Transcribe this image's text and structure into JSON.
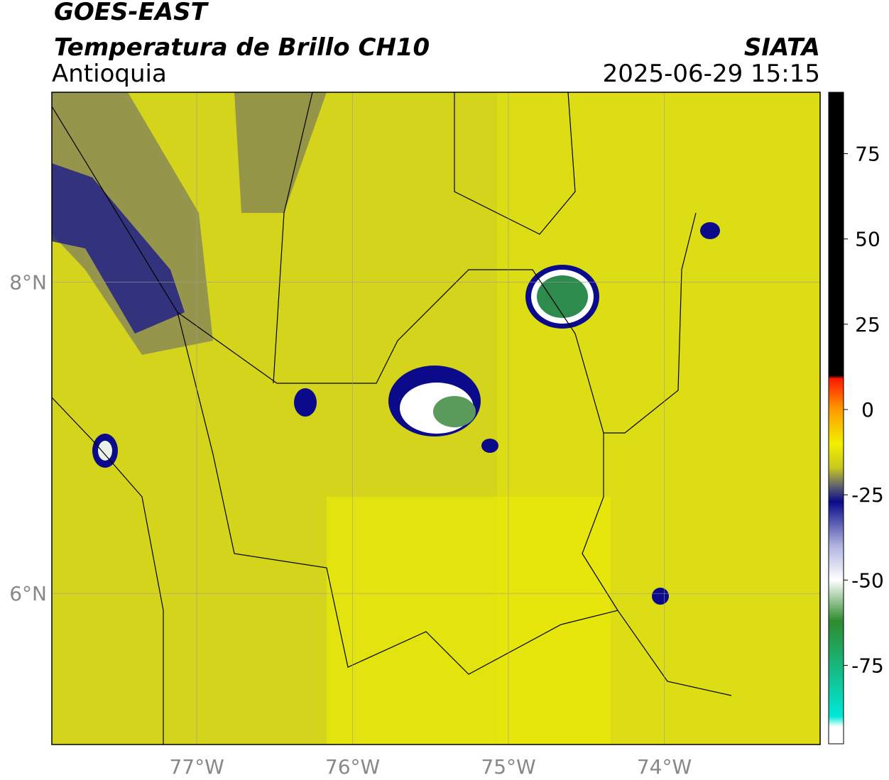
{
  "header": {
    "title": "GOES-EAST",
    "subtitle": "Temperatura de Brillo CH10",
    "region": "Antioquia",
    "source": "SIATA",
    "datetime": "2025-06-29 15:15"
  },
  "map": {
    "xlim": [
      -77.93,
      -73.0
    ],
    "ylim": [
      5.03,
      9.22
    ],
    "xticks": [
      {
        "value": -77,
        "label": "77°W"
      },
      {
        "value": -76,
        "label": "76°W"
      },
      {
        "value": -75,
        "label": "75°W"
      },
      {
        "value": -74,
        "label": "74°W"
      }
    ],
    "yticks": [
      {
        "value": 8,
        "label": "8°N"
      },
      {
        "value": 6,
        "label": "6°N"
      }
    ],
    "grid": true,
    "background": "#d4d41c"
  },
  "colorbar": {
    "lim": [
      -98,
      93
    ],
    "ticks": [
      75,
      50,
      25,
      0,
      -25,
      -50,
      -75
    ],
    "stops": [
      {
        "value": 93,
        "color": "#000000"
      },
      {
        "value": 10,
        "color": "#000000"
      },
      {
        "value": 9,
        "color": "#ff1a00"
      },
      {
        "value": 0,
        "color": "#ff9a00"
      },
      {
        "value": -10,
        "color": "#f2f000"
      },
      {
        "value": -17,
        "color": "#c8c81e"
      },
      {
        "value": -22,
        "color": "#6a6a6a"
      },
      {
        "value": -27,
        "color": "#0a0a8a"
      },
      {
        "value": -40,
        "color": "#b0b4e0"
      },
      {
        "value": -50,
        "color": "#ffffff"
      },
      {
        "value": -62,
        "color": "#2e8b2e"
      },
      {
        "value": -90,
        "color": "#00e8d8"
      },
      {
        "value": -93,
        "color": "#ffffff"
      },
      {
        "value": -98,
        "color": "#ffffff"
      }
    ]
  }
}
